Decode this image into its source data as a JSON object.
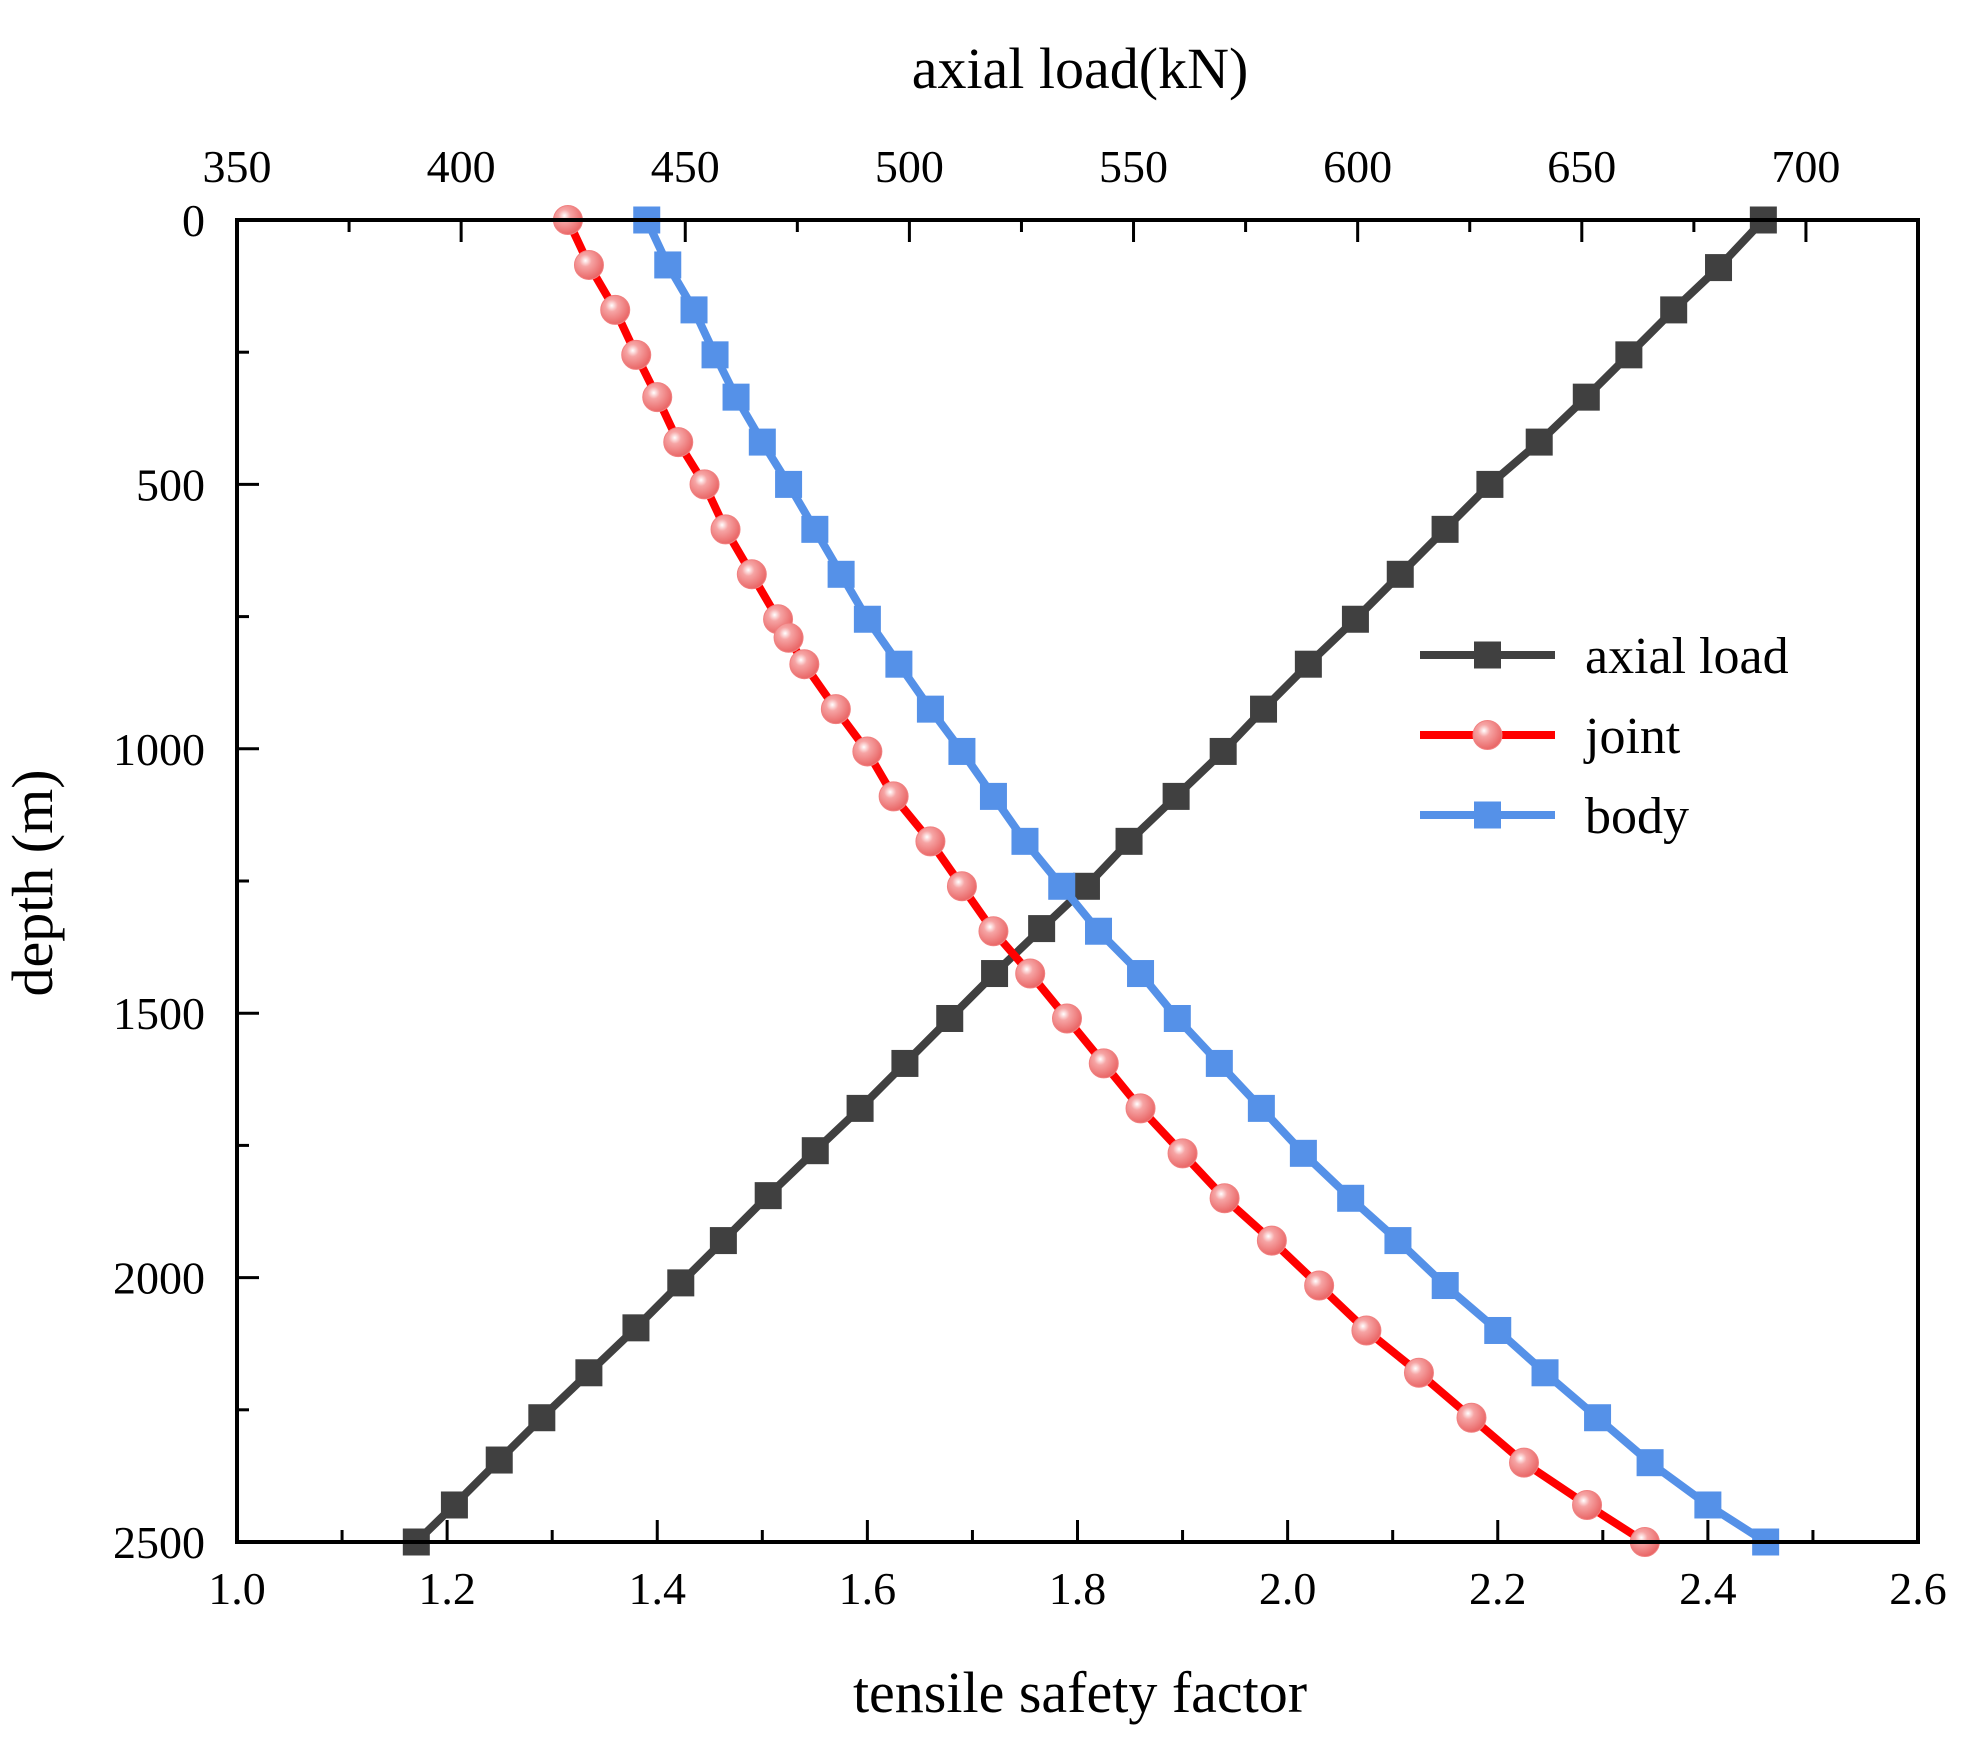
{
  "chart_data": {
    "type": "line",
    "title": "",
    "xlabel": "tensile safety factor",
    "x2label": "axial load(kN)",
    "ylabel": "depth (m)",
    "xlim": [
      1.0,
      2.6
    ],
    "x2lim": [
      350,
      725
    ],
    "ylim": [
      0,
      2500
    ],
    "y_inverted": true,
    "xticks": [
      "1.0",
      "1.2",
      "1.4",
      "1.6",
      "1.8",
      "2.0",
      "2.2",
      "2.4",
      "2.6"
    ],
    "x2ticks": [
      "350",
      "400",
      "450",
      "500",
      "550",
      "600",
      "650",
      "700"
    ],
    "yticks": [
      "0",
      "500",
      "1000",
      "1500",
      "2000",
      "2500"
    ],
    "grid": false,
    "legend_position": "center-right",
    "series": [
      {
        "name": "axial load",
        "axis": "top",
        "color": "#404040",
        "marker": "square",
        "points": [
          [
            690.5,
            0
          ],
          [
            680.5,
            90
          ],
          [
            670.5,
            170
          ],
          [
            660.5,
            255
          ],
          [
            651,
            335
          ],
          [
            640.5,
            420
          ],
          [
            629.5,
            500
          ],
          [
            619.5,
            585
          ],
          [
            609.5,
            670
          ],
          [
            599.5,
            755
          ],
          [
            589,
            840
          ],
          [
            579,
            925
          ],
          [
            570,
            1005
          ],
          [
            559.5,
            1090
          ],
          [
            549,
            1175
          ],
          [
            539.5,
            1260
          ],
          [
            529.5,
            1340
          ],
          [
            519,
            1425
          ],
          [
            509,
            1510
          ],
          [
            499,
            1595
          ],
          [
            489,
            1680
          ],
          [
            479,
            1760
          ],
          [
            468.5,
            1845
          ],
          [
            458.5,
            1930
          ],
          [
            449,
            2010
          ],
          [
            439,
            2095
          ],
          [
            428.5,
            2180
          ],
          [
            418,
            2265
          ],
          [
            408.5,
            2345
          ],
          [
            398.5,
            2430
          ],
          [
            390,
            2500
          ]
        ]
      },
      {
        "name": "joint",
        "axis": "bottom",
        "color": "#ff0000",
        "marker_color": "#f08080",
        "marker": "circle",
        "points": [
          [
            1.315,
            0
          ],
          [
            1.335,
            85
          ],
          [
            1.36,
            170
          ],
          [
            1.38,
            255
          ],
          [
            1.4,
            335
          ],
          [
            1.42,
            420
          ],
          [
            1.445,
            500
          ],
          [
            1.465,
            585
          ],
          [
            1.49,
            670
          ],
          [
            1.515,
            755
          ],
          [
            1.525,
            790
          ],
          [
            1.54,
            840
          ],
          [
            1.57,
            925
          ],
          [
            1.6,
            1005
          ],
          [
            1.625,
            1090
          ],
          [
            1.66,
            1175
          ],
          [
            1.69,
            1260
          ],
          [
            1.72,
            1345
          ],
          [
            1.755,
            1425
          ],
          [
            1.79,
            1510
          ],
          [
            1.825,
            1595
          ],
          [
            1.86,
            1680
          ],
          [
            1.9,
            1765
          ],
          [
            1.94,
            1850
          ],
          [
            1.985,
            1930
          ],
          [
            2.03,
            2015
          ],
          [
            2.075,
            2100
          ],
          [
            2.125,
            2180
          ],
          [
            2.175,
            2265
          ],
          [
            2.225,
            2350
          ],
          [
            2.285,
            2430
          ],
          [
            2.34,
            2500
          ]
        ]
      },
      {
        "name": "body",
        "axis": "bottom",
        "color": "#5591e8",
        "marker": "square",
        "points": [
          [
            1.39,
            0
          ],
          [
            1.41,
            85
          ],
          [
            1.435,
            170
          ],
          [
            1.455,
            255
          ],
          [
            1.475,
            335
          ],
          [
            1.5,
            420
          ],
          [
            1.525,
            500
          ],
          [
            1.55,
            585
          ],
          [
            1.575,
            670
          ],
          [
            1.6,
            755
          ],
          [
            1.63,
            840
          ],
          [
            1.66,
            925
          ],
          [
            1.69,
            1005
          ],
          [
            1.72,
            1090
          ],
          [
            1.75,
            1175
          ],
          [
            1.785,
            1260
          ],
          [
            1.82,
            1345
          ],
          [
            1.86,
            1425
          ],
          [
            1.895,
            1510
          ],
          [
            1.935,
            1595
          ],
          [
            1.975,
            1680
          ],
          [
            2.015,
            1765
          ],
          [
            2.06,
            1850
          ],
          [
            2.105,
            1930
          ],
          [
            2.15,
            2015
          ],
          [
            2.2,
            2100
          ],
          [
            2.245,
            2180
          ],
          [
            2.295,
            2265
          ],
          [
            2.345,
            2350
          ],
          [
            2.4,
            2430
          ],
          [
            2.455,
            2500
          ]
        ]
      }
    ]
  }
}
